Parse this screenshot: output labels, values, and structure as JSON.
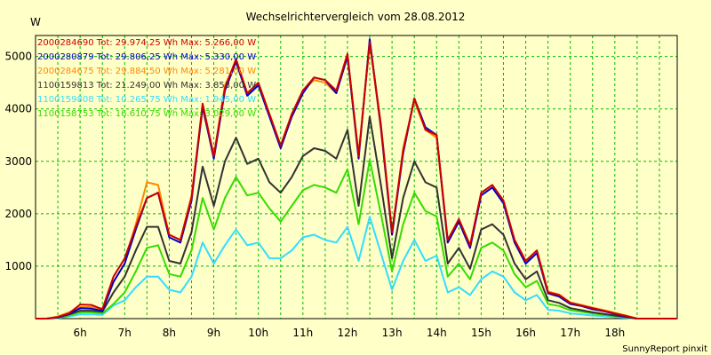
{
  "chart_data": {
    "type": "line",
    "title": "Wechselrichtervergleich vom 28.08.2012",
    "ylabel": "W",
    "xlabel": "",
    "footer": "SunnyReport pinxit",
    "ylim": [
      0,
      5400
    ],
    "xlim": [
      5.0,
      19.4
    ],
    "grid": true,
    "legend_position": "top-left",
    "y_ticks": [
      1000,
      2000,
      3000,
      4000,
      5000
    ],
    "x_tick_labels": [
      "6h",
      "7h",
      "8h",
      "9h",
      "10h",
      "11h",
      "12h",
      "13h",
      "14h",
      "15h",
      "16h",
      "17h",
      "18h"
    ],
    "x_tick_values": [
      6,
      7,
      8,
      9,
      10,
      11,
      12,
      13,
      14,
      15,
      16,
      17,
      18
    ],
    "x": [
      5.0,
      5.25,
      5.5,
      5.75,
      6.0,
      6.25,
      6.5,
      6.75,
      7.0,
      7.25,
      7.5,
      7.75,
      8.0,
      8.25,
      8.5,
      8.75,
      9.0,
      9.25,
      9.5,
      9.75,
      10.0,
      10.25,
      10.5,
      10.75,
      11.0,
      11.25,
      11.5,
      11.75,
      12.0,
      12.25,
      12.5,
      12.75,
      13.0,
      13.25,
      13.5,
      13.75,
      14.0,
      14.25,
      14.5,
      14.75,
      15.0,
      15.25,
      15.5,
      15.75,
      16.0,
      16.25,
      16.5,
      16.75,
      17.0,
      17.25,
      17.5,
      17.75,
      18.0,
      18.25,
      18.5,
      18.75,
      19.0,
      19.25,
      19.4
    ],
    "series": [
      {
        "name": "2000284690 Tot: 29.974,25 Wh Max: 5.266,00 W",
        "color": "#cc0000",
        "values": [
          0,
          0,
          30,
          100,
          270,
          260,
          180,
          800,
          1150,
          1750,
          2300,
          2400,
          1600,
          1500,
          2300,
          4100,
          3100,
          4400,
          4950,
          4300,
          4500,
          3900,
          3300,
          3900,
          4350,
          4600,
          4550,
          4350,
          5050,
          3100,
          5266,
          3700,
          1650,
          3200,
          4200,
          3600,
          3500,
          1500,
          1900,
          1400,
          2400,
          2550,
          2250,
          1500,
          1100,
          1300,
          500,
          450,
          300,
          250,
          200,
          150,
          100,
          50,
          0,
          0,
          0,
          0,
          0
        ]
      },
      {
        "name": "2000280879 Tot: 29.806,25 Wh Max: 5.330,00 W",
        "color": "#0000cc",
        "values": [
          0,
          0,
          20,
          90,
          200,
          190,
          150,
          700,
          1050,
          1700,
          2300,
          2400,
          1550,
          1450,
          2250,
          4050,
          3050,
          4350,
          4900,
          4250,
          4450,
          3850,
          3250,
          3850,
          4300,
          4600,
          4550,
          4300,
          5000,
          3050,
          5330,
          3650,
          1600,
          3150,
          4200,
          3650,
          3500,
          1450,
          1850,
          1350,
          2350,
          2500,
          2200,
          1450,
          1050,
          1250,
          480,
          420,
          280,
          240,
          180,
          140,
          90,
          40,
          0,
          0,
          0,
          0,
          0
        ]
      },
      {
        "name": "2000284675 Tot: 29.884,50 Wh Max: 5.281,00 W",
        "color": "#ff8800",
        "values": [
          0,
          0,
          40,
          120,
          220,
          220,
          190,
          700,
          1050,
          1800,
          2600,
          2550,
          1600,
          1500,
          2350,
          4000,
          3100,
          4450,
          4900,
          4300,
          4500,
          3900,
          3300,
          3900,
          4350,
          4550,
          4500,
          4300,
          5000,
          3150,
          5281,
          3600,
          1600,
          3250,
          4150,
          3600,
          3450,
          1450,
          1850,
          1350,
          2400,
          2550,
          2250,
          1500,
          1100,
          1300,
          520,
          460,
          310,
          260,
          210,
          160,
          110,
          60,
          0,
          0,
          0,
          0,
          0
        ]
      },
      {
        "name": "1100159813 Tot: 21.249,00 Wh Max: 3.853,00 W",
        "color": "#333333",
        "values": [
          0,
          0,
          20,
          80,
          150,
          150,
          130,
          500,
          800,
          1300,
          1750,
          1750,
          1100,
          1050,
          1650,
          2900,
          2150,
          3000,
          3450,
          2950,
          3050,
          2600,
          2400,
          2700,
          3100,
          3250,
          3200,
          3050,
          3600,
          2150,
          3853,
          2550,
          1150,
          2300,
          3000,
          2600,
          2500,
          1050,
          1350,
          950,
          1700,
          1800,
          1600,
          1050,
          750,
          900,
          350,
          300,
          200,
          160,
          120,
          90,
          60,
          30,
          0,
          0,
          0,
          0,
          0
        ]
      },
      {
        "name": "1100159808 Tot: 10.265,75 Wh Max: 1.945,00 W",
        "color": "#33ddff",
        "values": [
          0,
          0,
          10,
          40,
          80,
          80,
          70,
          250,
          350,
          600,
          800,
          800,
          550,
          500,
          800,
          1450,
          1050,
          1400,
          1700,
          1400,
          1450,
          1150,
          1150,
          1300,
          1550,
          1600,
          1500,
          1450,
          1750,
          1100,
          1945,
          1250,
          550,
          1100,
          1500,
          1100,
          1200,
          500,
          600,
          450,
          750,
          900,
          800,
          500,
          350,
          450,
          170,
          150,
          100,
          80,
          60,
          45,
          30,
          15,
          0,
          0,
          0,
          0,
          0
        ]
      },
      {
        "name": "1100158753 Tot: 16.610,75 Wh Max: 3.029,00 W",
        "color": "#33dd00",
        "values": [
          0,
          0,
          15,
          60,
          120,
          120,
          100,
          280,
          500,
          900,
          1350,
          1400,
          850,
          800,
          1300,
          2300,
          1700,
          2300,
          2700,
          2350,
          2400,
          2100,
          1850,
          2150,
          2450,
          2550,
          2500,
          2400,
          2850,
          1800,
          3029,
          2000,
          900,
          1800,
          2400,
          2050,
          1950,
          800,
          1050,
          750,
          1350,
          1450,
          1300,
          850,
          600,
          720,
          280,
          240,
          160,
          130,
          100,
          70,
          50,
          25,
          0,
          0,
          0,
          0,
          0
        ]
      }
    ]
  }
}
